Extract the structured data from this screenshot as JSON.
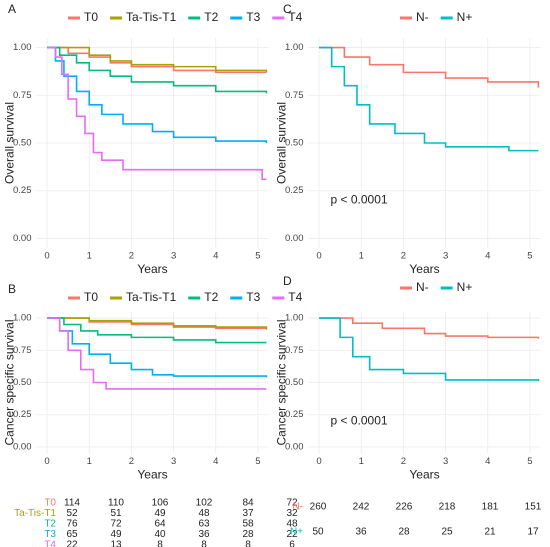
{
  "chart_data": [
    {
      "type": "line",
      "panel_label": "A",
      "x_label": "Years",
      "y_label": "Overall survival",
      "xlim": [
        -0.25,
        5.25
      ],
      "ylim": [
        -0.05,
        1.05
      ],
      "xticks": [
        0,
        1,
        2,
        3,
        4,
        5
      ],
      "yticks": [
        {
          "value": 0,
          "label": "0.00"
        },
        {
          "value": 0.25,
          "label": "0.25"
        },
        {
          "value": 0.5,
          "label": "0.50"
        },
        {
          "value": 0.75,
          "label": "0.75"
        },
        {
          "value": 1,
          "label": "1.00"
        }
      ],
      "grid": true,
      "legend": "top",
      "series": [
        {
          "name": "T0",
          "color": "#F8766D",
          "x": [
            0,
            0.5,
            1,
            1.5,
            2,
            3,
            4,
            5.2
          ],
          "values": [
            1,
            0.97,
            0.95,
            0.92,
            0.9,
            0.88,
            0.87,
            0.87
          ]
        },
        {
          "name": "Ta-Tis-T1",
          "color": "#A3A500",
          "x": [
            0,
            0.8,
            1,
            1.5,
            2,
            3,
            4,
            5.2
          ],
          "values": [
            1,
            1,
            0.96,
            0.93,
            0.91,
            0.9,
            0.88,
            0.87
          ]
        },
        {
          "name": "T2",
          "color": "#00BF7D",
          "x": [
            0,
            0.3,
            0.7,
            1,
            1.5,
            2,
            3,
            4,
            5.2
          ],
          "values": [
            1,
            0.96,
            0.92,
            0.88,
            0.85,
            0.82,
            0.8,
            0.77,
            0.76
          ]
        },
        {
          "name": "T3",
          "color": "#00B0F6",
          "x": [
            0,
            0.2,
            0.4,
            0.7,
            1,
            1.3,
            1.8,
            2.5,
            3,
            4,
            5.2
          ],
          "values": [
            1,
            0.93,
            0.85,
            0.77,
            0.7,
            0.65,
            0.6,
            0.56,
            0.53,
            0.51,
            0.5
          ]
        },
        {
          "name": "T4",
          "color": "#E76BF3",
          "x": [
            0,
            0.2,
            0.35,
            0.5,
            0.7,
            0.9,
            1.1,
            1.3,
            1.8,
            5.1,
            5.2
          ],
          "values": [
            1,
            0.95,
            0.86,
            0.73,
            0.64,
            0.55,
            0.45,
            0.41,
            0.36,
            0.31,
            0.31
          ]
        }
      ]
    },
    {
      "type": "line",
      "panel_label": "B",
      "x_label": "Years",
      "y_label": "Cancer specific survival",
      "xlim": [
        -0.25,
        5.25
      ],
      "ylim": [
        -0.05,
        1.05
      ],
      "xticks": [
        0,
        1,
        2,
        3,
        4,
        5
      ],
      "yticks": [
        {
          "value": 0,
          "label": "0.00"
        },
        {
          "value": 0.25,
          "label": "0.25"
        },
        {
          "value": 0.5,
          "label": "0.50"
        },
        {
          "value": 0.75,
          "label": "0.75"
        },
        {
          "value": 1,
          "label": "1.00"
        }
      ],
      "grid": true,
      "legend": "top",
      "series": [
        {
          "name": "T0",
          "color": "#F8766D",
          "x": [
            0,
            1,
            2,
            3,
            4,
            5.2
          ],
          "values": [
            1,
            0.97,
            0.95,
            0.93,
            0.92,
            0.92
          ]
        },
        {
          "name": "Ta-Tis-T1",
          "color": "#A3A500",
          "x": [
            0,
            1,
            2,
            3,
            4,
            5.2
          ],
          "values": [
            1,
            0.98,
            0.96,
            0.94,
            0.93,
            0.91
          ]
        },
        {
          "name": "T2",
          "color": "#00BF7D",
          "x": [
            0,
            0.4,
            0.8,
            1.2,
            2,
            3,
            4,
            5.2
          ],
          "values": [
            1,
            0.95,
            0.9,
            0.87,
            0.85,
            0.83,
            0.81,
            0.81
          ]
        },
        {
          "name": "T3",
          "color": "#00B0F6",
          "x": [
            0,
            0.3,
            0.6,
            1,
            1.5,
            2,
            2.5,
            3,
            5.2
          ],
          "values": [
            1,
            0.9,
            0.8,
            0.72,
            0.65,
            0.6,
            0.56,
            0.55,
            0.54
          ]
        },
        {
          "name": "T4",
          "color": "#E76BF3",
          "x": [
            0,
            0.3,
            0.5,
            0.8,
            1.1,
            1.4,
            5.2
          ],
          "values": [
            1,
            0.9,
            0.75,
            0.6,
            0.5,
            0.45,
            0.45
          ]
        }
      ],
      "risk_table": [
        [
          114,
          110,
          106,
          102,
          84,
          72
        ],
        [
          52,
          51,
          49,
          48,
          37,
          32
        ],
        [
          76,
          72,
          64,
          63,
          58,
          48
        ],
        [
          65,
          49,
          40,
          36,
          28,
          22
        ],
        [
          22,
          13,
          8,
          8,
          8,
          6
        ]
      ]
    },
    {
      "type": "line",
      "panel_label": "C",
      "x_label": "Years",
      "y_label": "Overall survival",
      "annotation": "p < 0.0001",
      "xlim": [
        -0.25,
        5.25
      ],
      "ylim": [
        -0.05,
        1.05
      ],
      "xticks": [
        0,
        1,
        2,
        3,
        4,
        5
      ],
      "yticks": [
        {
          "value": 0,
          "label": "0.00"
        },
        {
          "value": 0.25,
          "label": "0.25"
        },
        {
          "value": 0.5,
          "label": "0.50"
        },
        {
          "value": 0.75,
          "label": "0.75"
        },
        {
          "value": 1,
          "label": "1.00"
        }
      ],
      "grid": true,
      "legend": "top",
      "series": [
        {
          "name": "N-",
          "color": "#F8766D",
          "x": [
            0,
            0.6,
            1.2,
            2,
            3,
            4,
            5.2
          ],
          "values": [
            1,
            0.95,
            0.91,
            0.87,
            0.84,
            0.82,
            0.79
          ]
        },
        {
          "name": "N+",
          "color": "#00BFC4",
          "x": [
            0,
            0.3,
            0.6,
            0.9,
            1.2,
            1.8,
            2.5,
            3,
            4.5,
            5.2
          ],
          "values": [
            1,
            0.9,
            0.8,
            0.7,
            0.6,
            0.55,
            0.5,
            0.48,
            0.46,
            0.46
          ]
        }
      ]
    },
    {
      "type": "line",
      "panel_label": "D",
      "x_label": "Years",
      "y_label": "Cancer specific survival",
      "annotation": "p < 0.0001",
      "xlim": [
        -0.25,
        5.25
      ],
      "ylim": [
        -0.05,
        1.05
      ],
      "xticks": [
        0,
        1,
        2,
        3,
        4,
        5
      ],
      "yticks": [
        {
          "value": 0,
          "label": "0.00"
        },
        {
          "value": 0.25,
          "label": "0.25"
        },
        {
          "value": 0.5,
          "label": "0.50"
        },
        {
          "value": 0.75,
          "label": "0.75"
        },
        {
          "value": 1,
          "label": "1.00"
        }
      ],
      "grid": true,
      "legend": "top",
      "series": [
        {
          "name": "N-",
          "color": "#F8766D",
          "x": [
            0,
            0.8,
            1.5,
            2.5,
            3,
            4,
            5.2
          ],
          "values": [
            1,
            0.96,
            0.92,
            0.88,
            0.86,
            0.85,
            0.84
          ]
        },
        {
          "name": "N+",
          "color": "#00BFC4",
          "x": [
            0,
            0.5,
            0.8,
            1.2,
            2,
            3,
            5.2
          ],
          "values": [
            1,
            0.85,
            0.7,
            0.6,
            0.57,
            0.52,
            0.51
          ]
        }
      ],
      "risk_table": [
        [
          260,
          242,
          226,
          218,
          181,
          151
        ],
        [
          50,
          36,
          28,
          25,
          21,
          17
        ]
      ]
    }
  ]
}
